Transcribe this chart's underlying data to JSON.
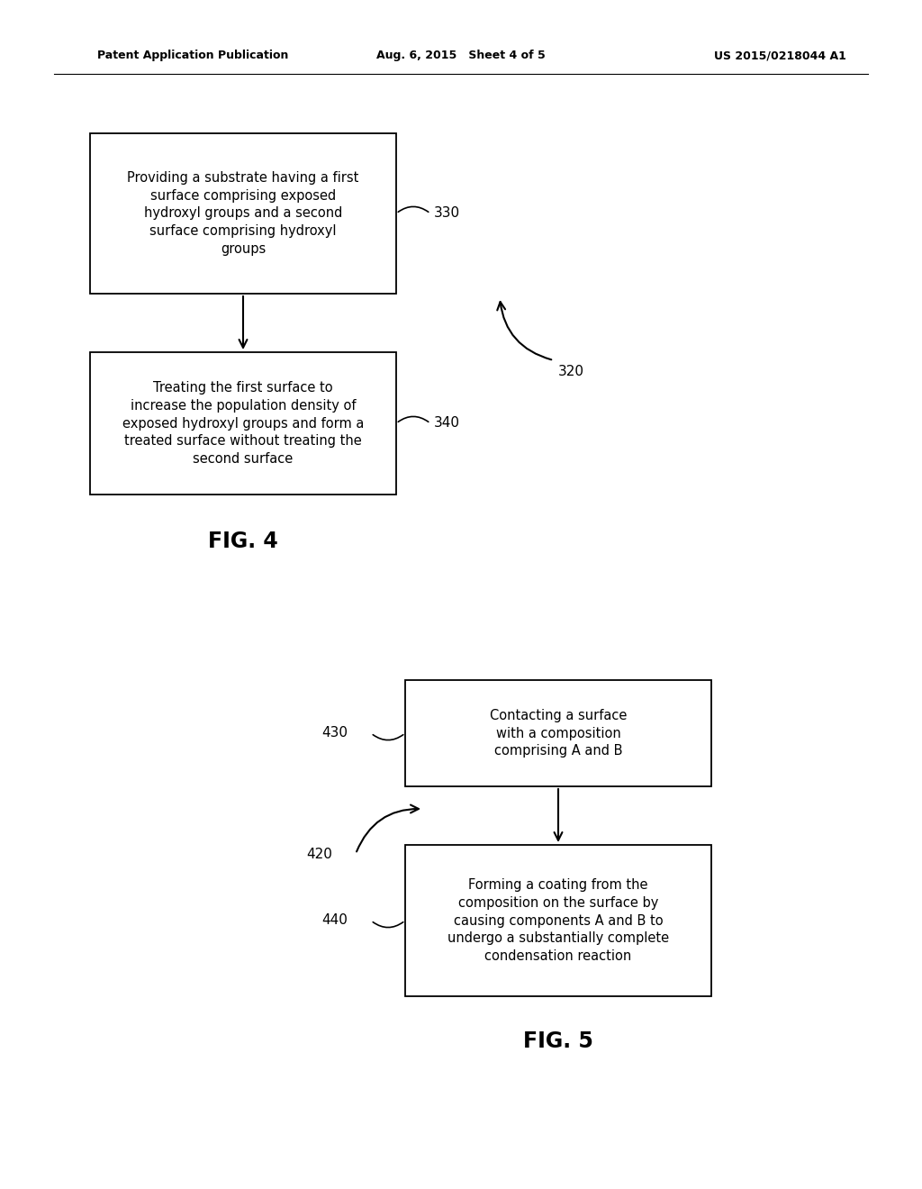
{
  "bg_color": "#ffffff",
  "header_left": "Patent Application Publication",
  "header_center": "Aug. 6, 2015   Sheet 4 of 5",
  "header_right": "US 2015/0218044 A1",
  "fig4_label": "FIG. 4",
  "fig5_label": "FIG. 5",
  "box330_text": "Providing a substrate having a first\nsurface comprising exposed\nhydroxyl groups and a second\nsurface comprising hydroxyl\ngroups",
  "box330_label": "330",
  "box340_text": "Treating the first surface to\nincrease the population density of\nexposed hydroxyl groups and form a\ntreated surface without treating the\nsecond surface",
  "box340_label": "340",
  "label320": "320",
  "box430_text": "Contacting a surface\nwith a composition\ncomprising A and B",
  "box430_label": "430",
  "box440_text": "Forming a coating from the\ncomposition on the surface by\ncausing components A and B to\nundergo a substantially complete\ncondensation reaction",
  "box440_label": "440",
  "label420": "420",
  "text_color": "#000000",
  "box_edge_color": "#000000",
  "box_face_color": "#ffffff"
}
